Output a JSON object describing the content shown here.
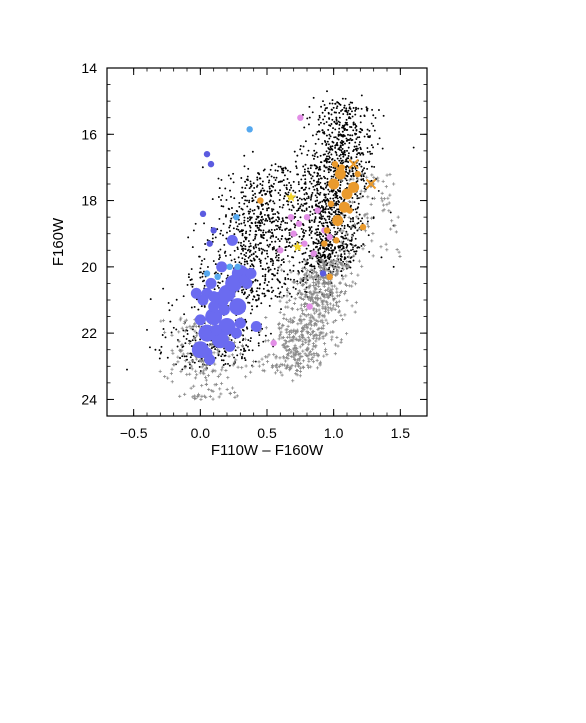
{
  "chart_data": {
    "type": "scatter",
    "title": "",
    "xlabel": "F110W – F160W",
    "ylabel": "F160W",
    "xlim": [
      -0.7,
      1.7
    ],
    "ylim": [
      24.5,
      14.0
    ],
    "y_inverted": true,
    "grid": false,
    "legend": "none",
    "x_tick_labels": [
      "−0.5",
      "0.0",
      "0.5",
      "1.0",
      "1.5"
    ],
    "x_ticks": [
      -0.5,
      0.0,
      0.5,
      1.0,
      1.5
    ],
    "y_tick_labels": [
      "14",
      "16",
      "18",
      "20",
      "22",
      "24"
    ],
    "y_ticks": [
      14,
      16,
      18,
      20,
      22,
      24
    ],
    "colors": {
      "field_black": "#000000",
      "field_gray": "#8a8a8a",
      "blue_large": "#6b6bf0",
      "light_blue": "#55a8ef",
      "violet": "#5b5be0",
      "pink": "#e28ee6",
      "orange": "#ea9a2c",
      "yellow": "#f4d52a"
    },
    "series": [
      {
        "marker": "circle",
        "color": "#6b6bf0",
        "x": [
          0.0,
          0.05,
          0.1,
          0.15,
          0.2,
          0.25,
          0.28,
          0.3,
          0.35,
          0.2,
          0.15,
          0.1,
          0.05,
          0.0,
          0.08,
          0.12,
          0.18,
          0.22,
          0.3,
          0.05,
          0.1,
          0.02,
          0.16,
          0.24,
          0.33,
          0.42,
          0.38,
          -0.03,
          0.27,
          0.07
        ],
        "y": [
          22.5,
          22.0,
          21.5,
          21.0,
          20.8,
          20.5,
          21.2,
          20.2,
          20.5,
          21.8,
          22.2,
          21.2,
          20.8,
          21.6,
          20.5,
          21.9,
          21.3,
          22.4,
          21.7,
          22.6,
          20.9,
          21.0,
          20.0,
          19.2,
          20.4,
          21.8,
          20.2,
          20.8,
          22.0,
          22.8
        ],
        "size": [
          3,
          3,
          3,
          3,
          3,
          3,
          3,
          3,
          2,
          3,
          3,
          2,
          2,
          2,
          2,
          2,
          2,
          2,
          2,
          2,
          2,
          2,
          2,
          2,
          2,
          2,
          2,
          2,
          2,
          2
        ]
      },
      {
        "marker": "circle",
        "color": "#5b5be0",
        "x": [
          0.05,
          0.08,
          0.02,
          0.1,
          0.07,
          0.92
        ],
        "y": [
          16.6,
          16.9,
          18.4,
          18.9,
          19.3,
          20.2
        ],
        "size": [
          1,
          1,
          1,
          1,
          1,
          1
        ]
      },
      {
        "marker": "circle",
        "color": "#55a8ef",
        "x": [
          0.37,
          0.27,
          0.13,
          0.22,
          0.05,
          0.28
        ],
        "y": [
          15.85,
          18.5,
          20.3,
          20.0,
          20.2,
          20.0
        ],
        "size": [
          1,
          1,
          1,
          1,
          1,
          1
        ]
      },
      {
        "marker": "circle",
        "color": "#e28ee6",
        "x": [
          0.75,
          0.68,
          0.74,
          0.8,
          0.88,
          0.93,
          0.7,
          0.78,
          0.85,
          0.97,
          0.82,
          0.6,
          0.55
        ],
        "y": [
          15.5,
          18.5,
          18.7,
          18.5,
          18.3,
          18.9,
          19.0,
          19.3,
          19.6,
          19.1,
          21.2,
          19.5,
          22.3
        ],
        "size": [
          1,
          1,
          1,
          1,
          1,
          1,
          1,
          1,
          1,
          1,
          1,
          1,
          1
        ]
      },
      {
        "marker": "circle",
        "color": "#ea9a2c",
        "x": [
          1.0,
          1.05,
          1.1,
          1.15,
          1.08,
          1.03,
          0.98,
          1.12,
          1.06,
          1.18,
          0.95,
          1.02,
          0.45,
          1.22,
          0.97,
          0.93,
          1.01
        ],
        "y": [
          17.5,
          17.2,
          17.8,
          17.6,
          18.2,
          18.6,
          18.1,
          18.3,
          17.0,
          17.2,
          18.9,
          19.2,
          18.0,
          18.8,
          20.3,
          19.3,
          16.9
        ],
        "size": [
          2,
          2,
          2,
          2,
          2,
          2,
          1,
          1,
          1,
          1,
          1,
          1,
          1,
          1,
          1,
          1,
          1
        ]
      },
      {
        "marker": "x",
        "color": "#ea9a2c",
        "x": [
          1.28,
          1.05,
          1.15
        ],
        "y": [
          17.5,
          17.1,
          16.9
        ]
      },
      {
        "marker": "star",
        "color": "#f4d52a",
        "x": [
          0.68,
          0.73
        ],
        "y": [
          17.9,
          19.4
        ]
      },
      {
        "marker": "point",
        "color": "#000000",
        "x": [
          0.92,
          0.95,
          1.0,
          1.05,
          1.1,
          0.88,
          0.8,
          0.7,
          0.6,
          0.5,
          0.4,
          0.3,
          0.2,
          0.1,
          0.0,
          0.15,
          0.25,
          0.35,
          0.45,
          1.2,
          1.3,
          1.45,
          1.6,
          -0.1,
          -0.4,
          -0.55,
          0.85
        ],
        "y": [
          15.0,
          14.7,
          15.2,
          16.0,
          16.5,
          17.0,
          17.8,
          18.2,
          18.8,
          19.2,
          19.6,
          20.0,
          20.5,
          21.0,
          21.6,
          19.0,
          18.5,
          18.0,
          17.5,
          17.8,
          18.5,
          20.0,
          16.4,
          22.8,
          21.9,
          23.1,
          14.9
        ],
        "note": "dense cloud of field stars along two sequences"
      },
      {
        "marker": "plus",
        "color": "#8a8a8a",
        "x": [
          0.9,
          0.95,
          1.0,
          0.85,
          0.8,
          0.75,
          0.7,
          0.65,
          1.05,
          1.1,
          0.0,
          -0.05,
          0.05,
          1.3,
          1.45
        ],
        "y": [
          20.0,
          20.5,
          21.0,
          21.3,
          21.8,
          22.2,
          22.6,
          23.0,
          19.5,
          19.0,
          23.2,
          23.6,
          22.8,
          17.5,
          17.5
        ],
        "note": "gray field population below the red sequence"
      }
    ]
  }
}
